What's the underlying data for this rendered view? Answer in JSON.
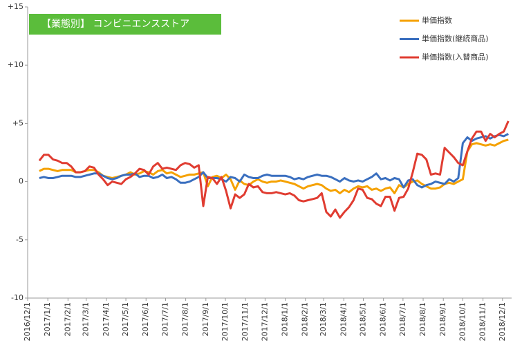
{
  "chart_data": {
    "type": "line",
    "title": "【業態別】 コンビニエンスストア",
    "x": [
      "2016-12-19",
      "2016-12-26",
      "2017-01-02",
      "2017-01-09",
      "2017-01-16",
      "2017-01-23",
      "2017-01-30",
      "2017-02-06",
      "2017-02-13",
      "2017-02-20",
      "2017-02-27",
      "2017-03-06",
      "2017-03-13",
      "2017-03-20",
      "2017-03-27",
      "2017-04-03",
      "2017-04-10",
      "2017-04-17",
      "2017-04-24",
      "2017-05-01",
      "2017-05-08",
      "2017-05-15",
      "2017-05-22",
      "2017-05-29",
      "2017-06-05",
      "2017-06-12",
      "2017-06-19",
      "2017-06-26",
      "2017-07-03",
      "2017-07-10",
      "2017-07-17",
      "2017-07-24",
      "2017-07-31",
      "2017-08-07",
      "2017-08-14",
      "2017-08-21",
      "2017-08-28",
      "2017-09-04",
      "2017-09-11",
      "2017-09-18",
      "2017-09-25",
      "2017-10-02",
      "2017-10-09",
      "2017-10-16",
      "2017-10-23",
      "2017-10-30",
      "2017-11-06",
      "2017-11-13",
      "2017-11-20",
      "2017-11-27",
      "2017-12-04",
      "2017-12-11",
      "2017-12-18",
      "2017-12-25",
      "2018-01-01",
      "2018-01-08",
      "2018-01-15",
      "2018-01-22",
      "2018-01-29",
      "2018-02-05",
      "2018-02-12",
      "2018-02-19",
      "2018-02-26",
      "2018-03-05",
      "2018-03-12",
      "2018-03-19",
      "2018-03-26",
      "2018-04-02",
      "2018-04-09",
      "2018-04-16",
      "2018-04-23",
      "2018-04-30",
      "2018-05-07",
      "2018-05-14",
      "2018-05-21",
      "2018-05-28",
      "2018-06-04",
      "2018-06-11",
      "2018-06-18",
      "2018-06-25",
      "2018-07-02",
      "2018-07-09",
      "2018-07-16",
      "2018-07-23",
      "2018-07-30",
      "2018-08-06",
      "2018-08-13",
      "2018-08-20",
      "2018-08-27",
      "2018-09-03",
      "2018-09-10",
      "2018-09-17",
      "2018-09-24",
      "2018-10-01",
      "2018-10-08",
      "2018-10-15",
      "2018-10-22",
      "2018-10-29",
      "2018-11-05",
      "2018-11-12",
      "2018-11-19",
      "2018-11-26",
      "2018-12-03",
      "2018-12-10"
    ],
    "series": [
      {
        "name": "単価指数",
        "color": "#f5a100",
        "values": [
          0.9,
          1.1,
          1.1,
          1.0,
          0.9,
          1.0,
          1.0,
          1.0,
          0.8,
          0.8,
          0.9,
          1.0,
          1.0,
          0.8,
          0.5,
          0.4,
          0.3,
          0.4,
          0.5,
          0.6,
          0.8,
          0.6,
          0.7,
          0.9,
          0.8,
          0.6,
          0.9,
          1.0,
          0.7,
          0.8,
          0.6,
          0.4,
          0.5,
          0.6,
          0.6,
          0.7,
          0.8,
          -0.4,
          0.4,
          0.5,
          0.3,
          0.6,
          0.2,
          -0.7,
          0.1,
          -0.2,
          -0.3,
          0.0,
          0.2,
          0.0,
          -0.1,
          0.0,
          0.0,
          0.1,
          0.0,
          -0.1,
          -0.2,
          -0.4,
          -0.6,
          -0.4,
          -0.3,
          -0.2,
          -0.3,
          -0.6,
          -0.8,
          -0.7,
          -1.0,
          -0.7,
          -0.9,
          -0.6,
          -0.4,
          -0.5,
          -0.4,
          -0.7,
          -0.6,
          -0.8,
          -0.6,
          -0.5,
          -1.0,
          -0.3,
          -0.5,
          -0.2,
          0.0,
          0.1,
          -0.2,
          -0.4,
          -0.6,
          -0.6,
          -0.5,
          -0.2,
          -0.1,
          -0.2,
          0.0,
          0.2,
          2.6,
          3.2,
          3.3,
          3.2,
          3.1,
          3.2,
          3.1,
          3.3,
          3.5,
          3.6
        ]
      },
      {
        "name": "単価指数(継続商品)",
        "color": "#3a6fbf",
        "values": [
          0.3,
          0.4,
          0.3,
          0.3,
          0.4,
          0.5,
          0.5,
          0.5,
          0.4,
          0.4,
          0.5,
          0.6,
          0.7,
          0.7,
          0.5,
          0.3,
          0.2,
          0.3,
          0.5,
          0.6,
          0.6,
          0.7,
          0.4,
          0.5,
          0.5,
          0.3,
          0.4,
          0.6,
          0.3,
          0.4,
          0.2,
          -0.1,
          -0.1,
          0.0,
          0.2,
          0.4,
          0.8,
          0.3,
          0.3,
          0.3,
          0.2,
          0.0,
          0.4,
          0.3,
          0.0,
          0.6,
          0.4,
          0.3,
          0.3,
          0.5,
          0.6,
          0.5,
          0.5,
          0.5,
          0.5,
          0.4,
          0.2,
          0.3,
          0.2,
          0.4,
          0.5,
          0.6,
          0.5,
          0.5,
          0.4,
          0.2,
          0.0,
          0.3,
          0.1,
          0.0,
          0.1,
          0.0,
          0.2,
          0.4,
          0.7,
          0.2,
          0.3,
          0.1,
          0.3,
          0.2,
          -0.5,
          0.1,
          0.2,
          -0.3,
          -0.5,
          -0.3,
          -0.2,
          0.0,
          -0.1,
          -0.2,
          0.2,
          0.0,
          0.3,
          3.3,
          3.8,
          3.5,
          3.7,
          3.8,
          3.9,
          3.7,
          3.9,
          4.0,
          3.9,
          4.1
        ]
      },
      {
        "name": "単価指数(入替商品)",
        "color": "#e03c31",
        "values": [
          1.8,
          2.3,
          2.3,
          1.9,
          1.8,
          1.6,
          1.6,
          1.3,
          0.8,
          0.8,
          0.9,
          1.3,
          1.2,
          0.6,
          0.2,
          -0.3,
          0.0,
          -0.1,
          -0.2,
          0.2,
          0.4,
          0.7,
          1.1,
          1.0,
          0.6,
          1.3,
          1.6,
          1.1,
          1.2,
          1.1,
          1.0,
          1.4,
          1.6,
          1.5,
          1.2,
          1.4,
          -2.1,
          0.4,
          0.3,
          -0.2,
          0.4,
          -0.8,
          -2.3,
          -1.1,
          -1.4,
          -1.1,
          -0.2,
          -0.5,
          -0.4,
          -0.9,
          -1.0,
          -1.0,
          -0.9,
          -1.0,
          -1.1,
          -1.0,
          -1.2,
          -1.6,
          -1.7,
          -1.6,
          -1.5,
          -1.4,
          -1.0,
          -2.6,
          -3.0,
          -2.4,
          -3.1,
          -2.6,
          -2.2,
          -1.6,
          -0.6,
          -0.7,
          -1.4,
          -1.5,
          -1.9,
          -2.1,
          -1.3,
          -1.3,
          -2.5,
          -1.4,
          -1.3,
          -0.6,
          0.8,
          2.4,
          2.3,
          1.9,
          0.6,
          0.7,
          0.6,
          2.9,
          2.5,
          2.1,
          1.6,
          1.4,
          2.6,
          3.7,
          4.3,
          4.3,
          3.5,
          4.1,
          3.8,
          4.1,
          4.3,
          5.2
        ]
      }
    ],
    "xlim": [
      "2016-12-01",
      "2018-12-15"
    ],
    "xticks": [
      {
        "value": "2016-12-01",
        "label": "2016/12/1"
      },
      {
        "value": "2017-01-01",
        "label": "2017/1/1"
      },
      {
        "value": "2017-02-01",
        "label": "2017/2/1"
      },
      {
        "value": "2017-03-01",
        "label": "2017/3/1"
      },
      {
        "value": "2017-04-01",
        "label": "2017/4/1"
      },
      {
        "value": "2017-05-01",
        "label": "2017/5/1"
      },
      {
        "value": "2017-06-01",
        "label": "2017/6/1"
      },
      {
        "value": "2017-07-01",
        "label": "2017/7/1"
      },
      {
        "value": "2017-08-01",
        "label": "2017/8/1"
      },
      {
        "value": "2017-09-01",
        "label": "2017/9/1"
      },
      {
        "value": "2017-10-01",
        "label": "2017/10/1"
      },
      {
        "value": "2017-11-01",
        "label": "2017/11/1"
      },
      {
        "value": "2017-12-01",
        "label": "2017/12/1"
      },
      {
        "value": "2018-01-01",
        "label": "2018/1/1"
      },
      {
        "value": "2018-02-01",
        "label": "2018/2/1"
      },
      {
        "value": "2018-03-01",
        "label": "2018/3/1"
      },
      {
        "value": "2018-04-01",
        "label": "2018/4/1"
      },
      {
        "value": "2018-05-01",
        "label": "2018/5/1"
      },
      {
        "value": "2018-06-01",
        "label": "2018/6/1"
      },
      {
        "value": "2018-07-01",
        "label": "2018/7/1"
      },
      {
        "value": "2018-08-01",
        "label": "2018/8/1"
      },
      {
        "value": "2018-09-01",
        "label": "2018/9/1"
      },
      {
        "value": "2018-10-01",
        "label": "2018/10/1"
      },
      {
        "value": "2018-11-01",
        "label": "2018/11/1"
      },
      {
        "value": "2018-12-01",
        "label": "2018/12/1"
      }
    ],
    "ylim": [
      -10,
      15
    ],
    "yticks": [
      -10,
      -5,
      0,
      {
        "value": 5,
        "label": "+5"
      },
      {
        "value": 10,
        "label": "+10"
      },
      {
        "value": 15,
        "label": "+15"
      }
    ],
    "legend": "upper right"
  }
}
